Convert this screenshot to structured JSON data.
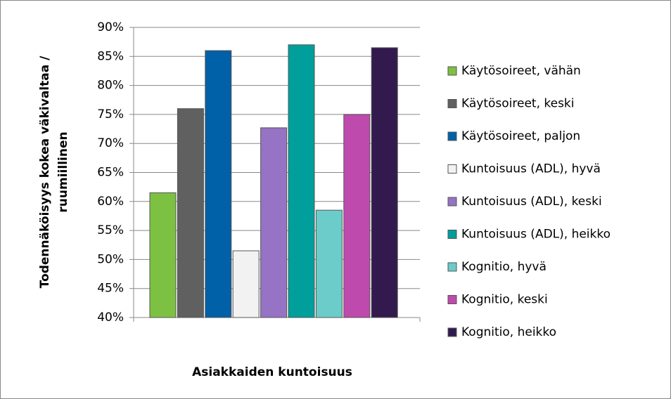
{
  "chart_data": {
    "type": "bar",
    "xlabel": "Asiakkaiden kuntoisuus",
    "ylabel": [
      "Todennäköisyys kokea väkivaltaa /",
      "ruumiillinen"
    ],
    "categories": [
      null
    ],
    "series": [
      {
        "name": "Käytösoireet, vähän",
        "color": "#7dc142",
        "values": [
          61.5
        ]
      },
      {
        "name": "Käytösoireet, keski",
        "color": "#606060",
        "values": [
          76
        ]
      },
      {
        "name": "Käytösoireet, paljon",
        "color": "#0060a8",
        "values": [
          86
        ]
      },
      {
        "name": "Kuntoisuus (ADL), hyvä",
        "color": "#f2f2f2",
        "values": [
          51.5
        ]
      },
      {
        "name": "Kuntoisuus (ADL), keski",
        "color": "#9673c4",
        "values": [
          72.7
        ]
      },
      {
        "name": "Kuntoisuus (ADL), heikko",
        "color": "#009f9c",
        "values": [
          87
        ]
      },
      {
        "name": "Kognitio, hyvä",
        "color": "#6cccc9",
        "values": [
          58.5
        ]
      },
      {
        "name": "Kognitio, keski",
        "color": "#bf4aad",
        "values": [
          75
        ]
      },
      {
        "name": "Kognitio, heikko",
        "color": "#321a4e",
        "values": [
          86.5
        ]
      }
    ],
    "ylim": [
      40,
      90
    ],
    "yticks": [
      {
        "value": 40,
        "label": "40%"
      },
      {
        "value": 45,
        "label": "45%"
      },
      {
        "value": 50,
        "label": "50%"
      },
      {
        "value": 55,
        "label": "55%"
      },
      {
        "value": 60,
        "label": "60%"
      },
      {
        "value": 65,
        "label": "65%"
      },
      {
        "value": 70,
        "label": "70%"
      },
      {
        "value": 75,
        "label": "75%"
      },
      {
        "value": 80,
        "label": "80%"
      },
      {
        "value": 85,
        "label": "85%"
      },
      {
        "value": 90,
        "label": "90%"
      }
    ],
    "grid": true,
    "legend": "right"
  }
}
